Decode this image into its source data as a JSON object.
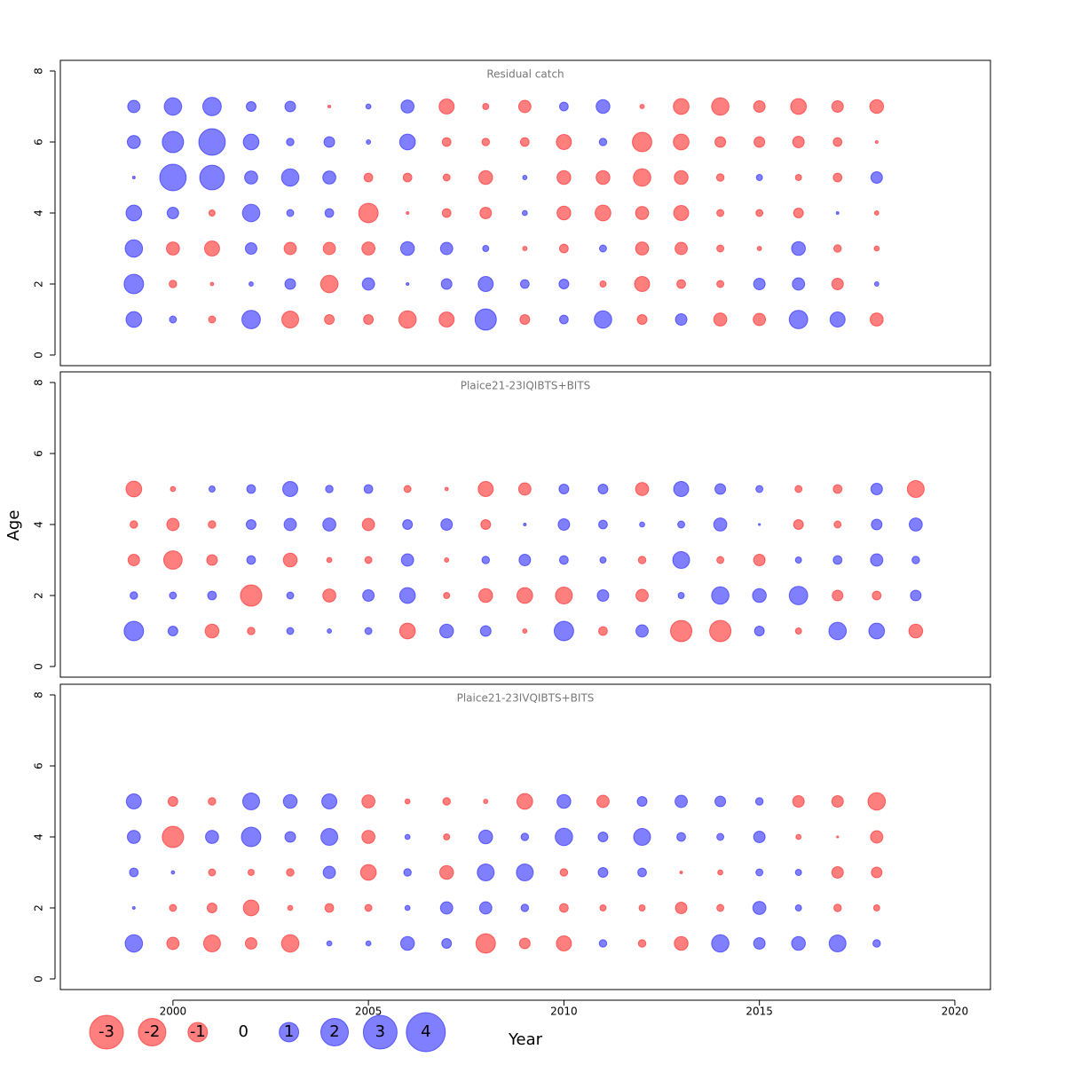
{
  "chart_data": [
    {
      "type": "bubble",
      "title": "Residual catch",
      "x": [
        1999,
        2000,
        2001,
        2002,
        2003,
        2004,
        2005,
        2006,
        2007,
        2008,
        2009,
        2010,
        2011,
        2012,
        2013,
        2014,
        2015,
        2016,
        2017,
        2018
      ],
      "series": [
        {
          "y": 1,
          "values": [
            0.65,
            0.13,
            -0.13,
            0.9,
            -0.75,
            -0.25,
            -0.25,
            -0.8,
            -0.6,
            1.2,
            -0.25,
            0.2,
            0.8,
            -0.25,
            0.35,
            -0.45,
            -0.4,
            0.9,
            0.6,
            -0.45
          ]
        },
        {
          "y": 2,
          "values": [
            1.0,
            -0.15,
            -0.03,
            0.05,
            0.3,
            -0.8,
            0.4,
            0.02,
            0.3,
            0.6,
            0.2,
            0.25,
            -0.1,
            -0.6,
            -0.2,
            -0.13,
            0.35,
            0.4,
            -0.35,
            0.05
          ]
        },
        {
          "y": 3,
          "values": [
            0.8,
            -0.45,
            -0.6,
            0.35,
            -0.4,
            -0.4,
            -0.45,
            0.5,
            0.4,
            0.1,
            -0.05,
            -0.2,
            0.13,
            -0.45,
            -0.4,
            -0.13,
            -0.05,
            0.5,
            -0.15,
            -0.07
          ]
        },
        {
          "y": 4,
          "values": [
            0.65,
            0.35,
            -0.1,
            0.8,
            0.13,
            0.2,
            -1.0,
            -0.02,
            -0.2,
            -0.35,
            0.07,
            -0.5,
            -0.65,
            -0.45,
            -0.6,
            -0.13,
            -0.13,
            -0.25,
            0.02,
            -0.05
          ]
        },
        {
          "y": 5,
          "values": [
            0.02,
            1.85,
            1.6,
            0.45,
            0.8,
            0.45,
            -0.2,
            -0.2,
            -0.13,
            -0.5,
            0.05,
            -0.5,
            -0.5,
            -0.8,
            -0.5,
            -0.15,
            0.1,
            -0.1,
            -0.2,
            0.35
          ]
        },
        {
          "y": 6,
          "values": [
            0.45,
            1.2,
            1.85,
            0.65,
            0.15,
            0.3,
            0.05,
            0.65,
            -0.2,
            -0.15,
            -0.2,
            -0.6,
            0.15,
            -1.0,
            -0.65,
            -0.3,
            -0.3,
            -0.35,
            -0.2,
            -0.02
          ]
        },
        {
          "y": 7,
          "values": [
            0.4,
            0.8,
            0.9,
            0.25,
            0.3,
            -0.02,
            0.07,
            0.45,
            -0.6,
            -0.1,
            -0.4,
            0.2,
            0.5,
            -0.05,
            -0.65,
            -0.8,
            -0.35,
            -0.65,
            -0.35,
            -0.5
          ]
        }
      ],
      "ylim": [
        -0.3,
        8.3
      ],
      "yticks": [
        0,
        2,
        4,
        6,
        8
      ],
      "xlim": [
        1997.12,
        2020.91
      ]
    },
    {
      "type": "bubble",
      "title": "Plaice21-23IQIBTS+BITS",
      "x": [
        1999,
        2000,
        2001,
        2002,
        2003,
        2004,
        2005,
        2006,
        2007,
        2008,
        2009,
        2010,
        2011,
        2012,
        2013,
        2014,
        2015,
        2016,
        2017,
        2018,
        2019
      ],
      "series": [
        {
          "y": 1,
          "values": [
            1.0,
            0.25,
            -0.5,
            -0.15,
            0.13,
            0.05,
            0.13,
            -0.65,
            0.5,
            0.3,
            -0.05,
            1.0,
            -0.2,
            0.4,
            -1.2,
            -1.2,
            0.25,
            -0.1,
            0.8,
            0.65,
            -0.5
          ]
        },
        {
          "y": 2,
          "values": [
            0.15,
            0.13,
            0.2,
            -1.2,
            0.13,
            -0.45,
            0.35,
            0.65,
            -0.1,
            -0.5,
            -0.65,
            -0.75,
            0.35,
            -0.4,
            0.1,
            0.8,
            0.5,
            0.9,
            -0.3,
            -0.2,
            0.3
          ]
        },
        {
          "y": 3,
          "values": [
            -0.35,
            -0.9,
            -0.3,
            0.2,
            -0.5,
            -0.07,
            -0.13,
            0.4,
            -0.05,
            0.15,
            0.35,
            0.2,
            0.1,
            -0.15,
            0.75,
            -0.13,
            -0.35,
            0.1,
            0.2,
            0.4,
            0.15
          ]
        },
        {
          "y": 4,
          "values": [
            -0.15,
            -0.4,
            -0.15,
            0.25,
            0.4,
            0.45,
            -0.4,
            0.25,
            0.35,
            -0.25,
            0.02,
            0.35,
            0.2,
            0.07,
            0.13,
            0.45,
            0.01,
            -0.25,
            -0.13,
            0.3,
            0.45
          ]
        },
        {
          "y": 5,
          "values": [
            -0.65,
            -0.07,
            0.1,
            0.2,
            0.6,
            0.15,
            0.2,
            -0.13,
            -0.03,
            -0.6,
            -0.4,
            0.25,
            0.25,
            -0.45,
            0.6,
            0.3,
            0.13,
            -0.13,
            -0.2,
            0.35,
            -0.75
          ]
        }
      ],
      "ylim": [
        -0.3,
        8.3
      ],
      "yticks": [
        0,
        2,
        4,
        6,
        8
      ],
      "xlim": [
        1997.12,
        2020.91
      ]
    },
    {
      "type": "bubble",
      "title": "Plaice21-23IVQIBTS+BITS",
      "x": [
        1999,
        2000,
        2001,
        2002,
        2003,
        2004,
        2005,
        2006,
        2007,
        2008,
        2009,
        2010,
        2011,
        2012,
        2013,
        2014,
        2015,
        2016,
        2017,
        2018
      ],
      "series": [
        {
          "y": 1,
          "values": [
            0.8,
            -0.4,
            -0.75,
            -0.35,
            -0.8,
            0.07,
            0.07,
            0.5,
            0.25,
            -1.0,
            -0.3,
            -0.6,
            0.15,
            -0.15,
            -0.5,
            0.8,
            0.35,
            0.5,
            0.75,
            0.15
          ]
        },
        {
          "y": 2,
          "values": [
            0.02,
            -0.13,
            -0.25,
            -0.65,
            -0.07,
            -0.2,
            -0.13,
            0.07,
            0.4,
            0.4,
            0.15,
            -0.2,
            -0.1,
            -0.1,
            -0.35,
            -0.13,
            0.45,
            0.1,
            -0.15,
            -0.1
          ]
        },
        {
          "y": 3,
          "values": [
            0.2,
            0.03,
            -0.13,
            -0.1,
            -0.15,
            0.4,
            -0.65,
            0.15,
            -0.5,
            0.75,
            0.75,
            -0.15,
            0.25,
            0.2,
            -0.02,
            -0.07,
            0.13,
            0.1,
            -0.35,
            -0.3
          ]
        },
        {
          "y": 4,
          "values": [
            0.45,
            -1.2,
            0.45,
            1.0,
            0.3,
            0.75,
            -0.45,
            0.07,
            -0.1,
            0.5,
            0.15,
            0.8,
            0.25,
            0.75,
            0.2,
            0.13,
            0.35,
            -0.07,
            -0.01,
            -0.4
          ]
        },
        {
          "y": 5,
          "values": [
            0.6,
            -0.25,
            -0.15,
            0.75,
            0.5,
            0.6,
            -0.45,
            -0.07,
            -0.15,
            -0.05,
            -0.65,
            0.5,
            -0.4,
            0.25,
            0.4,
            0.3,
            0.15,
            -0.35,
            -0.35,
            -0.8
          ]
        }
      ],
      "ylim": [
        -0.3,
        8.3
      ],
      "yticks": [
        0,
        2,
        4,
        6,
        8
      ],
      "xlim": [
        1997.12,
        2020.91
      ],
      "xticks": [
        2000,
        2005,
        2010,
        2015,
        2020
      ]
    }
  ],
  "xlabel": "Year",
  "ylabel": "Age",
  "size_legend": [
    -3,
    -2,
    -1,
    0,
    1,
    2,
    3,
    4
  ],
  "positive_color": "#0000ff",
  "negative_color": "#ff0000",
  "opacity": 0.5
}
